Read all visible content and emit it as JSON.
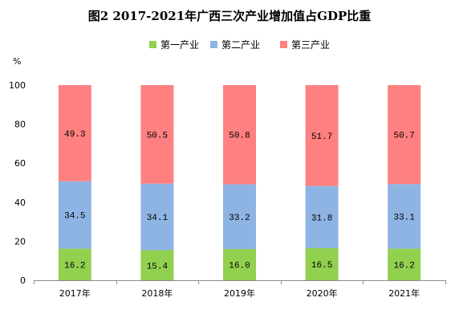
{
  "chart_data": {
    "type": "bar",
    "stacked": true,
    "title": "图2 2017-2021年广西三次产业增加值占GDP比重",
    "ylabel": "%",
    "xlabel": "",
    "ylim": [
      0,
      100
    ],
    "yticks": [
      "0",
      "20",
      "40",
      "60",
      "80",
      "100"
    ],
    "categories": [
      "2017年",
      "2018年",
      "2019年",
      "2020年",
      "2021年"
    ],
    "series": [
      {
        "name": "第一产业",
        "color": "#92d050",
        "values": [
          16.2,
          15.4,
          16.0,
          16.5,
          16.2
        ],
        "labels": [
          "16.2",
          "15.4",
          "16.0",
          "16.5",
          "16.2"
        ]
      },
      {
        "name": "第二产业",
        "color": "#8eb4e3",
        "values": [
          34.5,
          34.1,
          33.2,
          31.8,
          33.1
        ],
        "labels": [
          "34.5",
          "34.1",
          "33.2",
          "31.8",
          "33.1"
        ]
      },
      {
        "name": "第三产业",
        "color": "#ff8080",
        "values": [
          49.3,
          50.5,
          50.8,
          51.7,
          50.7
        ],
        "labels": [
          "49.3",
          "50.5",
          "50.8",
          "51.7",
          "50.7"
        ]
      }
    ],
    "legend_position": "top",
    "grid": false
  }
}
